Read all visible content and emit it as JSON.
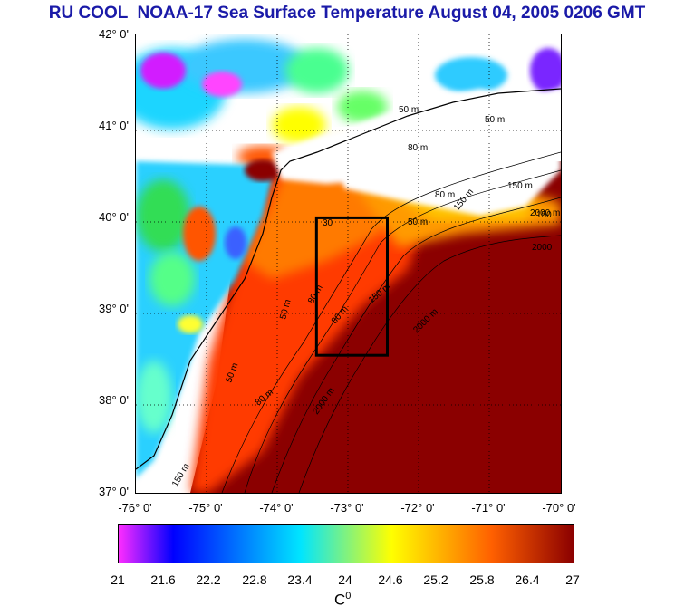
{
  "title": "RU COOL  NOAA-17 Sea Surface Temperature August 04, 2005 0206 GMT",
  "map": {
    "lat_labels": [
      "42° 0'",
      "41° 0'",
      "40° 0'",
      "39° 0'",
      "38° 0'",
      "37° 0'"
    ],
    "lon_labels": [
      "-76° 0'",
      "-75° 0'",
      "-74° 0'",
      "-73° 0'",
      "-72° 0'",
      "-71° 0'",
      "-70° 0'"
    ],
    "lat_range": [
      37,
      42
    ],
    "lon_range": [
      -76,
      -70
    ],
    "bathymetry_labels": [
      "50 m",
      "80 m",
      "150 m",
      "2000 m",
      "50 m",
      "80 m",
      "150",
      "2000",
      "50 m",
      "80 m",
      "150 m",
      "2000 m",
      "30",
      "50 m",
      "80 m",
      "150 m",
      "2000 m",
      "50 m",
      "80 m",
      "150 m"
    ],
    "study_box": {
      "lon_min": -73.45,
      "lon_max": -72.45,
      "lat_min": 38.5,
      "lat_max": 40.0
    }
  },
  "colorbar": {
    "ticks": [
      "21",
      "21.6",
      "22.2",
      "22.8",
      "23.4",
      "24",
      "24.6",
      "25.2",
      "25.8",
      "26.4",
      "27"
    ],
    "unit_base": "C",
    "unit_sup": "0",
    "colors": [
      "#ff2cff",
      "#0000ff",
      "#00e5ff",
      "#ffff00",
      "#ff6000",
      "#8b0000"
    ]
  }
}
